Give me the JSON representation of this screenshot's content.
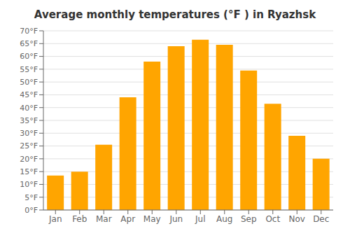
{
  "chart_data": {
    "type": "bar",
    "title": "Average monthly temperatures (°F ) in Ryazhsk",
    "categories": [
      "Jan",
      "Feb",
      "Mar",
      "Apr",
      "May",
      "Jun",
      "Jul",
      "Aug",
      "Sep",
      "Oct",
      "Nov",
      "Dec"
    ],
    "values": [
      13.5,
      15,
      25.5,
      44,
      58,
      64,
      66.5,
      64.5,
      54.5,
      41.5,
      29,
      20
    ],
    "color": "#FFA500",
    "ylim": [
      0,
      70
    ],
    "yticks": [
      {
        "value": 0,
        "label": "0°F"
      },
      {
        "value": 5,
        "label": "5°F"
      },
      {
        "value": 10,
        "label": "10°F"
      },
      {
        "value": 15,
        "label": "15°F"
      },
      {
        "value": 20,
        "label": "20°F"
      },
      {
        "value": 25,
        "label": "25°F"
      },
      {
        "value": 30,
        "label": "30°F"
      },
      {
        "value": 35,
        "label": "35°F"
      },
      {
        "value": 40,
        "label": "40°F"
      },
      {
        "value": 45,
        "label": "45°F"
      },
      {
        "value": 50,
        "label": "50°F"
      },
      {
        "value": 55,
        "label": "55°F"
      },
      {
        "value": 60,
        "label": "60°F"
      },
      {
        "value": 65,
        "label": "65°F"
      },
      {
        "value": 70,
        "label": "70°F"
      }
    ],
    "grid": true
  }
}
